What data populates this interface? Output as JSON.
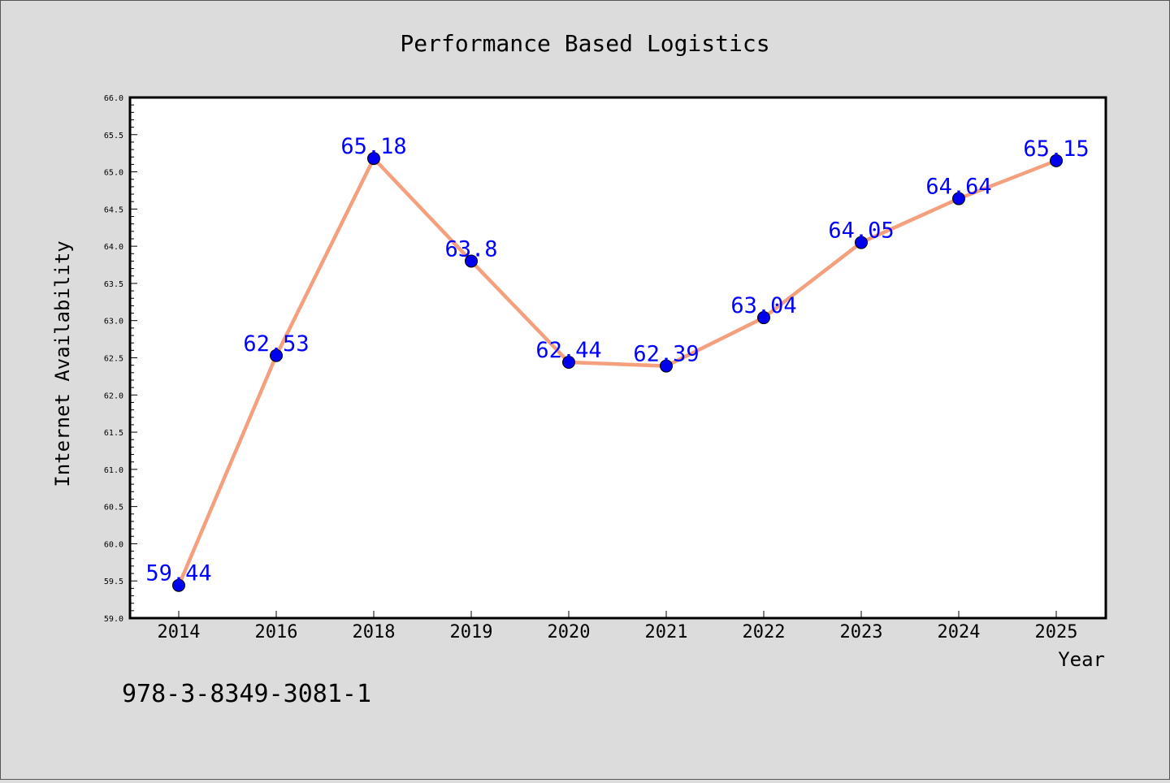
{
  "colors": {
    "background": "#dcdcdc",
    "plot_background": "#ffffff",
    "line": "#f4a07e",
    "marker": "#0000ee",
    "data_label": "#0000ff",
    "text": "#000000"
  },
  "footer": {
    "isbn": "978-3-8349-3081-1"
  },
  "chart_data": {
    "type": "line",
    "title": "Performance Based Logistics",
    "xlabel": "Year",
    "ylabel": "Internet Availability",
    "categories": [
      "2014",
      "2016",
      "2018",
      "2019",
      "2020",
      "2021",
      "2022",
      "2023",
      "2024",
      "2025"
    ],
    "series": [
      {
        "values": [
          59.44,
          62.53,
          65.18,
          63.8,
          62.44,
          62.39,
          63.04,
          64.05,
          64.64,
          65.15
        ],
        "labels": [
          "59.44",
          "62.53",
          "65.18",
          "63.8",
          "62.44",
          "62.39",
          "63.04",
          "64.05",
          "64.64",
          "65.15"
        ]
      }
    ],
    "ylim": [
      59.0,
      66.0
    ],
    "yticks": [
      "59.0",
      "59.5",
      "60.0",
      "60.5",
      "61.0",
      "61.5",
      "62.0",
      "62.5",
      "63.0",
      "63.5",
      "64.0",
      "64.5",
      "65.0",
      "65.5",
      "66.0"
    ],
    "grid": false,
    "legend": "none"
  }
}
